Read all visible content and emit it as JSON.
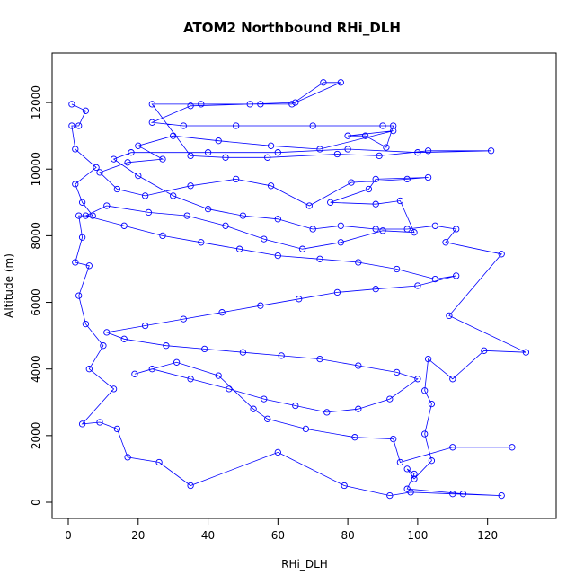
{
  "chart_data": {
    "type": "scatter",
    "title": "ATOM2 Northbound RHi_DLH",
    "xlabel": "RHi_DLH",
    "ylabel": "Altitude (m)",
    "xlim": [
      0,
      135
    ],
    "ylim": [
      0,
      13000
    ],
    "x_ticks": [
      0,
      20,
      40,
      60,
      80,
      100,
      120
    ],
    "y_ticks": [
      0,
      2000,
      4000,
      6000,
      8000,
      10000,
      12000
    ],
    "grid": false,
    "style": "points connected by lines (open circles)",
    "color": "#0000ff",
    "series": [
      {
        "values": [
          [
            1,
            11950
          ],
          [
            5,
            11750
          ],
          [
            3,
            11300
          ],
          [
            1,
            11300
          ],
          [
            2,
            10600
          ],
          [
            8,
            10050
          ],
          [
            2,
            9550
          ],
          [
            4,
            9000
          ],
          [
            7,
            8600
          ],
          [
            3,
            8600
          ],
          [
            4,
            7950
          ],
          [
            2,
            7200
          ],
          [
            6,
            7100
          ],
          [
            3,
            6200
          ],
          [
            5,
            5350
          ],
          [
            10,
            4700
          ],
          [
            6,
            4000
          ],
          [
            13,
            3400
          ],
          [
            4,
            2350
          ],
          [
            9,
            2400
          ],
          [
            14,
            2200
          ],
          [
            17,
            1350
          ],
          [
            26,
            1200
          ],
          [
            35,
            500
          ],
          [
            60,
            1500
          ],
          [
            79,
            500
          ],
          [
            92,
            200
          ],
          [
            98,
            300
          ],
          [
            110,
            250
          ],
          [
            124,
            200
          ],
          [
            113,
            250
          ],
          [
            97,
            400
          ],
          [
            99,
            850
          ],
          [
            97,
            1000
          ],
          [
            99,
            700
          ],
          [
            104,
            1250
          ],
          [
            102,
            2050
          ],
          [
            104,
            2950
          ],
          [
            102,
            3350
          ],
          [
            103,
            4300
          ],
          [
            110,
            3700
          ],
          [
            119,
            4550
          ],
          [
            131,
            4500
          ],
          [
            109,
            5600
          ],
          [
            124,
            7450
          ],
          [
            108,
            7800
          ],
          [
            111,
            8200
          ],
          [
            105,
            8300
          ],
          [
            97,
            8200
          ],
          [
            88,
            8200
          ],
          [
            78,
            8300
          ],
          [
            70,
            8200
          ],
          [
            60,
            8500
          ],
          [
            50,
            8600
          ],
          [
            40,
            8800
          ],
          [
            30,
            9200
          ],
          [
            20,
            9800
          ],
          [
            13,
            10300
          ],
          [
            18,
            10500
          ],
          [
            40,
            10500
          ],
          [
            60,
            10500
          ],
          [
            80,
            10600
          ],
          [
            100,
            10500
          ],
          [
            121,
            10550
          ],
          [
            103,
            10550
          ],
          [
            89,
            10400
          ],
          [
            77,
            10450
          ],
          [
            57,
            10350
          ],
          [
            45,
            10350
          ],
          [
            35,
            10400
          ],
          [
            24,
            11950
          ],
          [
            38,
            11950
          ],
          [
            55,
            11950
          ],
          [
            64,
            11950
          ],
          [
            73,
            12600
          ],
          [
            78,
            12600
          ],
          [
            65,
            12000
          ],
          [
            52,
            11950
          ],
          [
            35,
            11900
          ],
          [
            24,
            11400
          ],
          [
            33,
            11300
          ],
          [
            48,
            11300
          ],
          [
            70,
            11300
          ],
          [
            90,
            11300
          ],
          [
            93,
            11300
          ],
          [
            91,
            10650
          ],
          [
            85,
            11000
          ],
          [
            80,
            11000
          ],
          [
            93,
            11150
          ],
          [
            72,
            10600
          ],
          [
            58,
            10700
          ],
          [
            43,
            10850
          ],
          [
            30,
            11000
          ],
          [
            20,
            10700
          ],
          [
            27,
            10300
          ],
          [
            17,
            10200
          ],
          [
            9,
            9900
          ],
          [
            14,
            9400
          ],
          [
            22,
            9200
          ],
          [
            35,
            9500
          ],
          [
            48,
            9700
          ],
          [
            58,
            9500
          ],
          [
            69,
            8900
          ],
          [
            81,
            9600
          ],
          [
            97,
            9700
          ],
          [
            103,
            9750
          ],
          [
            88,
            9700
          ],
          [
            86,
            9400
          ],
          [
            75,
            9000
          ],
          [
            88,
            8950
          ],
          [
            95,
            9050
          ],
          [
            99,
            8100
          ],
          [
            90,
            8150
          ],
          [
            78,
            7800
          ],
          [
            67,
            7600
          ],
          [
            56,
            7900
          ],
          [
            45,
            8300
          ],
          [
            34,
            8600
          ],
          [
            23,
            8700
          ],
          [
            11,
            8900
          ],
          [
            5,
            8600
          ],
          [
            16,
            8300
          ],
          [
            27,
            8000
          ],
          [
            38,
            7800
          ],
          [
            49,
            7600
          ],
          [
            60,
            7400
          ],
          [
            72,
            7300
          ],
          [
            83,
            7200
          ],
          [
            94,
            7000
          ],
          [
            105,
            6700
          ],
          [
            111,
            6800
          ],
          [
            100,
            6500
          ],
          [
            88,
            6400
          ],
          [
            77,
            6300
          ],
          [
            66,
            6100
          ],
          [
            55,
            5900
          ],
          [
            44,
            5700
          ],
          [
            33,
            5500
          ],
          [
            22,
            5300
          ],
          [
            11,
            5100
          ],
          [
            16,
            4900
          ],
          [
            28,
            4700
          ],
          [
            39,
            4600
          ],
          [
            50,
            4500
          ],
          [
            61,
            4400
          ],
          [
            72,
            4300
          ],
          [
            83,
            4100
          ],
          [
            94,
            3900
          ],
          [
            100,
            3700
          ],
          [
            92,
            3100
          ],
          [
            83,
            2800
          ],
          [
            74,
            2700
          ],
          [
            65,
            2900
          ],
          [
            56,
            3100
          ],
          [
            46,
            3400
          ],
          [
            35,
            3700
          ],
          [
            24,
            4000
          ],
          [
            19,
            3850
          ],
          [
            31,
            4200
          ],
          [
            43,
            3800
          ],
          [
            53,
            2800
          ],
          [
            57,
            2500
          ],
          [
            68,
            2200
          ],
          [
            82,
            1950
          ],
          [
            93,
            1900
          ],
          [
            95,
            1200
          ],
          [
            110,
            1650
          ],
          [
            127,
            1650
          ]
        ]
      }
    ]
  }
}
